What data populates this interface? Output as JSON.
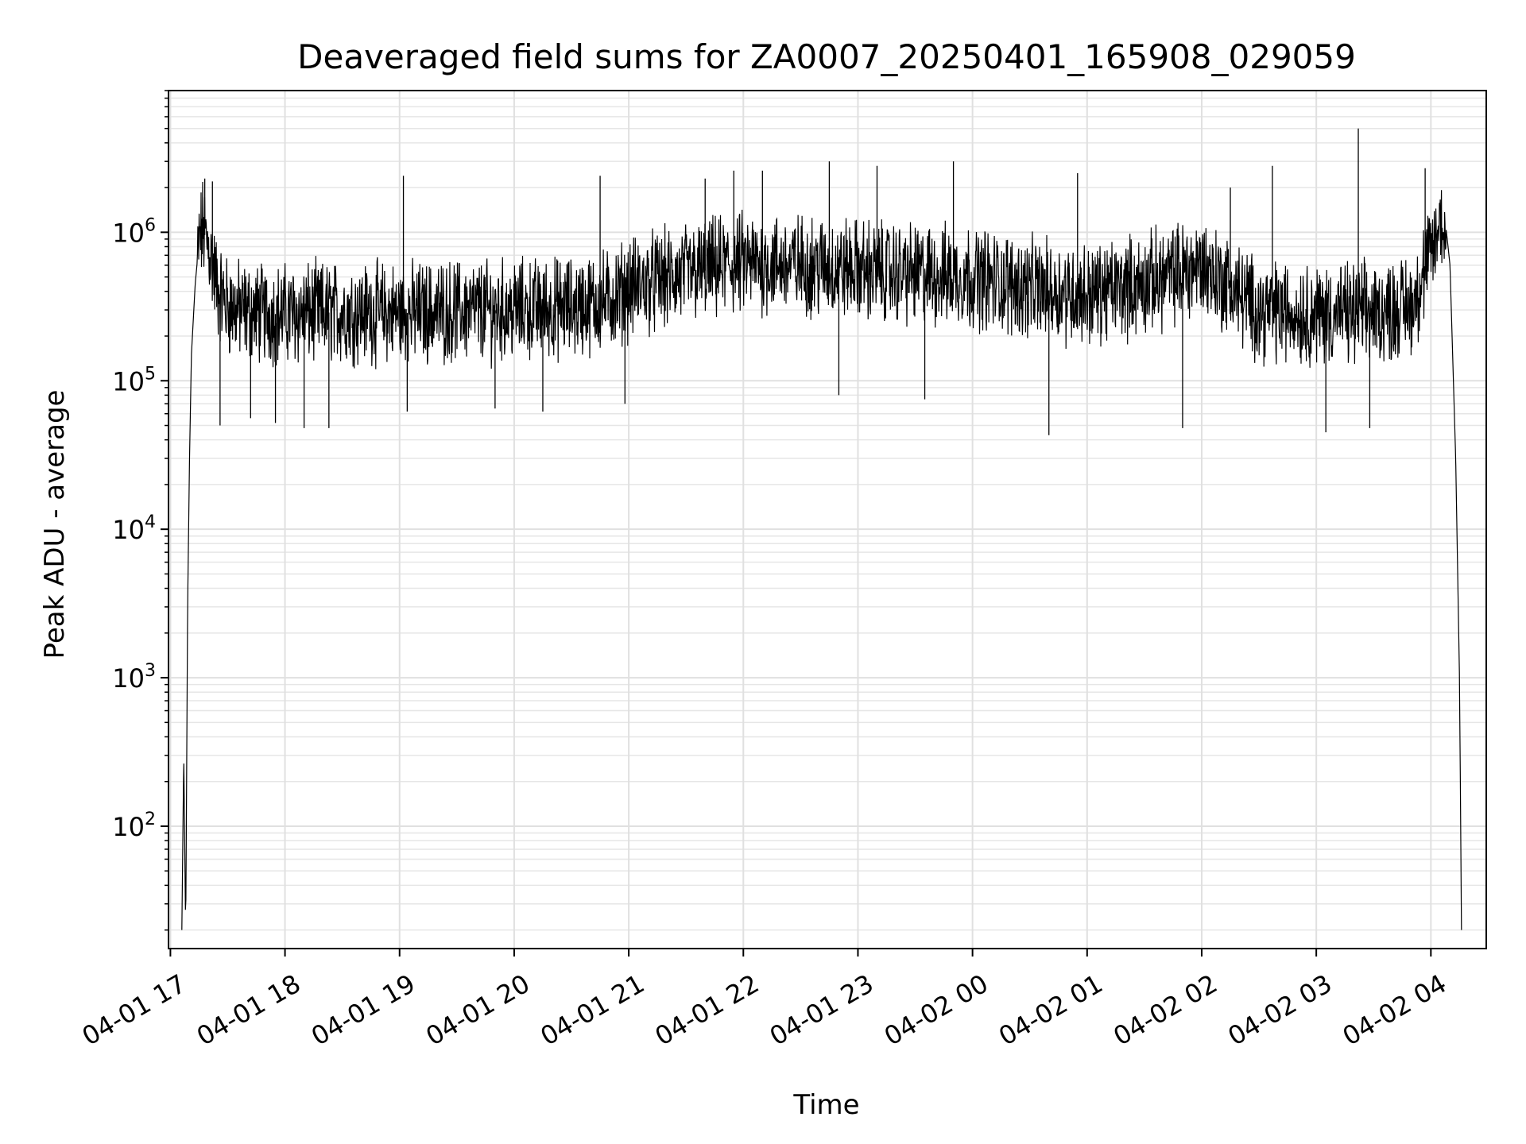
{
  "chart_data": {
    "type": "line",
    "title": "Deaveraged field sums for ZA0007_20250401_165908_029059",
    "xlabel": "Time",
    "ylabel": "Peak ADU - average",
    "y_scale": "log",
    "ylim": [
      15,
      9000000
    ],
    "xlim": [
      "2025-04-01 16:59",
      "2025-04-02 04:29"
    ],
    "grid": true,
    "line_color": "#000000",
    "x_ticks": [
      {
        "t": "2025-04-01 17:00",
        "label": "04-01 17"
      },
      {
        "t": "2025-04-01 18:00",
        "label": "04-01 18"
      },
      {
        "t": "2025-04-01 19:00",
        "label": "04-01 19"
      },
      {
        "t": "2025-04-01 20:00",
        "label": "04-01 20"
      },
      {
        "t": "2025-04-01 21:00",
        "label": "04-01 21"
      },
      {
        "t": "2025-04-01 22:00",
        "label": "04-01 22"
      },
      {
        "t": "2025-04-01 23:00",
        "label": "04-01 23"
      },
      {
        "t": "2025-04-02 00:00",
        "label": "04-02 00"
      },
      {
        "t": "2025-04-02 01:00",
        "label": "04-02 01"
      },
      {
        "t": "2025-04-02 02:00",
        "label": "04-02 02"
      },
      {
        "t": "2025-04-02 03:00",
        "label": "04-02 03"
      },
      {
        "t": "2025-04-02 04:00",
        "label": "04-02 04"
      }
    ],
    "y_ticks": [
      {
        "value": 100,
        "base": "10",
        "exp": "2"
      },
      {
        "value": 1000,
        "base": "10",
        "exp": "3"
      },
      {
        "value": 10000,
        "base": "10",
        "exp": "4"
      },
      {
        "value": 100000,
        "base": "10",
        "exp": "5"
      },
      {
        "value": 1000000,
        "base": "10",
        "exp": "6"
      }
    ],
    "series": [
      {
        "x": [
          "2025-04-01 17:06",
          "2025-04-01 17:07",
          "2025-04-01 17:08",
          "2025-04-01 17:09",
          "2025-04-01 17:10",
          "2025-04-01 17:11",
          "2025-04-01 17:13",
          "2025-04-01 17:15",
          "2025-04-01 17:17",
          "2025-04-01 17:20",
          "2025-04-01 17:25",
          "2025-04-01 17:30",
          "2025-04-01 17:35",
          "2025-04-01 17:40",
          "2025-04-01 17:45",
          "2025-04-01 18:00",
          "2025-04-01 18:30",
          "2025-04-01 19:00",
          "2025-04-01 19:30",
          "2025-04-01 20:00",
          "2025-04-01 20:30",
          "2025-04-01 20:50",
          "2025-04-01 21:00",
          "2025-04-01 21:30",
          "2025-04-01 22:00",
          "2025-04-01 22:30",
          "2025-04-01 23:00",
          "2025-04-01 23:30",
          "2025-04-02 00:00",
          "2025-04-02 00:30",
          "2025-04-02 01:00",
          "2025-04-02 01:30",
          "2025-04-02 02:00",
          "2025-04-02 02:30",
          "2025-04-02 03:00",
          "2025-04-02 03:30",
          "2025-04-02 03:50",
          "2025-04-02 04:00",
          "2025-04-02 04:05",
          "2025-04-02 04:08",
          "2025-04-02 04:10",
          "2025-04-02 04:13",
          "2025-04-02 04:15",
          "2025-04-02 04:16"
        ],
        "y": [
          20,
          300,
          20,
          3000,
          30000,
          150000,
          450000,
          850000,
          1050000,
          800000,
          400000,
          320000,
          300000,
          290000,
          285000,
          280000,
          290000,
          285000,
          295000,
          300000,
          310000,
          350000,
          420000,
          520000,
          620000,
          600000,
          560000,
          520000,
          500000,
          420000,
          380000,
          450000,
          600000,
          300000,
          280000,
          285000,
          320000,
          700000,
          1150000,
          1050000,
          600000,
          30000,
          1000,
          20
        ]
      }
    ],
    "spikes": [
      {
        "t": "2025-04-01 17:18",
        "value": 2300000
      },
      {
        "t": "2025-04-01 17:22",
        "value": 2200000
      },
      {
        "t": "2025-04-01 17:26",
        "value": 50000
      },
      {
        "t": "2025-04-01 17:42",
        "value": 56000
      },
      {
        "t": "2025-04-01 17:55",
        "value": 52000
      },
      {
        "t": "2025-04-01 18:10",
        "value": 48000
      },
      {
        "t": "2025-04-01 18:23",
        "value": 48000
      },
      {
        "t": "2025-04-01 19:02",
        "value": 2400000
      },
      {
        "t": "2025-04-01 19:04",
        "value": 62000
      },
      {
        "t": "2025-04-01 19:50",
        "value": 65000
      },
      {
        "t": "2025-04-01 20:15",
        "value": 62000
      },
      {
        "t": "2025-04-01 20:45",
        "value": 2400000
      },
      {
        "t": "2025-04-01 20:58",
        "value": 70000
      },
      {
        "t": "2025-04-01 21:40",
        "value": 2300000
      },
      {
        "t": "2025-04-01 21:55",
        "value": 2600000
      },
      {
        "t": "2025-04-01 22:10",
        "value": 2600000
      },
      {
        "t": "2025-04-01 22:45",
        "value": 3000000
      },
      {
        "t": "2025-04-01 22:50",
        "value": 80000
      },
      {
        "t": "2025-04-01 23:10",
        "value": 2800000
      },
      {
        "t": "2025-04-01 23:35",
        "value": 75000
      },
      {
        "t": "2025-04-01 23:50",
        "value": 3000000
      },
      {
        "t": "2025-04-02 00:40",
        "value": 43000
      },
      {
        "t": "2025-04-02 00:55",
        "value": 2500000
      },
      {
        "t": "2025-04-02 01:50",
        "value": 48000
      },
      {
        "t": "2025-04-02 02:15",
        "value": 2000000
      },
      {
        "t": "2025-04-02 02:37",
        "value": 2800000
      },
      {
        "t": "2025-04-02 03:05",
        "value": 45000
      },
      {
        "t": "2025-04-02 03:22",
        "value": 5000000
      },
      {
        "t": "2025-04-02 03:28",
        "value": 48000
      },
      {
        "t": "2025-04-02 03:57",
        "value": 2700000
      }
    ]
  }
}
